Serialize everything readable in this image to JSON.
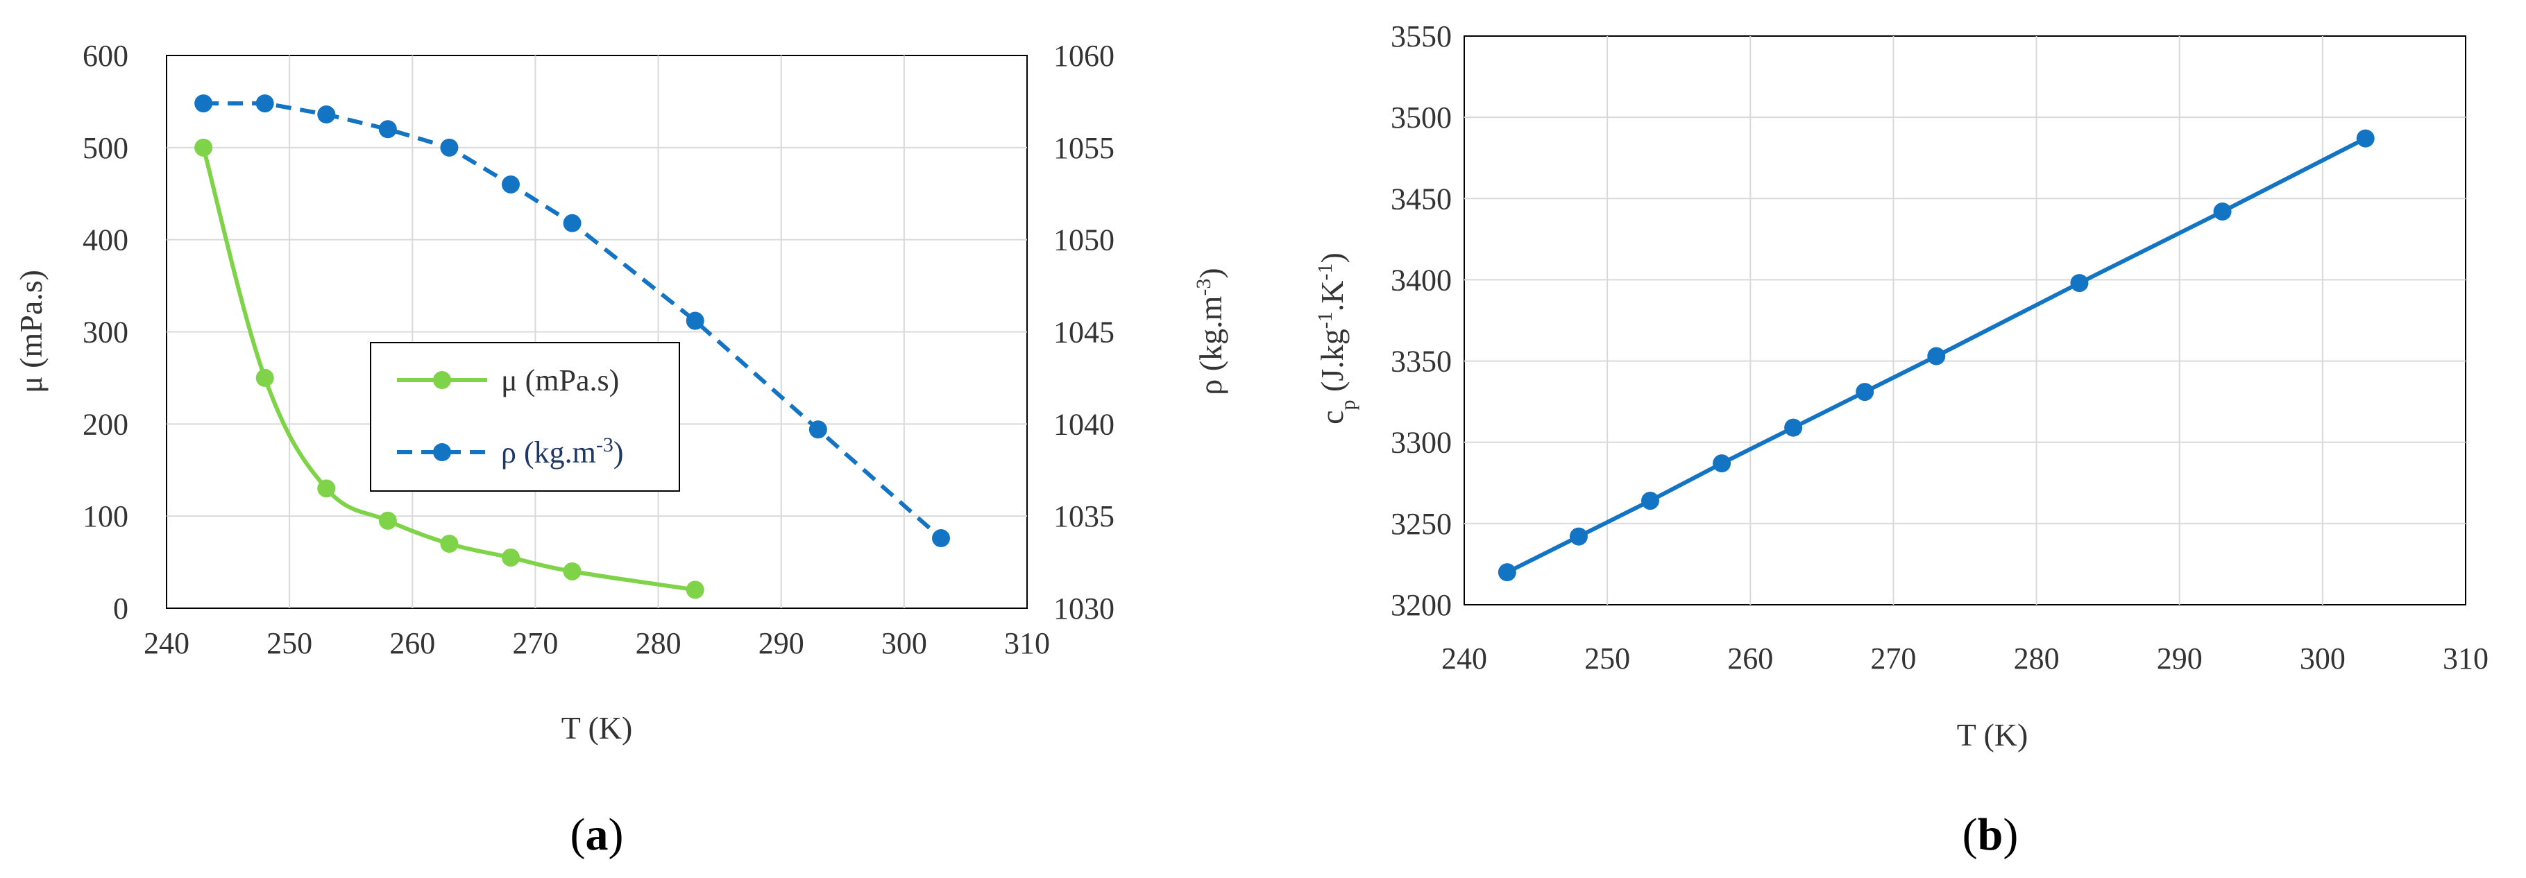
{
  "colors": {
    "mu": "#7ED348",
    "rho": "#1474C4",
    "cp": "#1474C4",
    "grid": "#D9D9D9",
    "frame": "#000000",
    "text": "#333333"
  },
  "chart_data": [
    {
      "type": "line",
      "panel_label": {
        "open": "(",
        "letter": "a",
        "close": ")"
      },
      "xlabel": "T (K)",
      "ylabel_left": "μ (mPa.s)",
      "ylabel_right": {
        "base": "ρ (kg.m",
        "sup": "-3",
        "tail": ")"
      },
      "xlim": [
        240,
        310
      ],
      "xticks": [
        240,
        250,
        260,
        270,
        280,
        290,
        300,
        310
      ],
      "ylim_left": [
        0,
        600
      ],
      "yticks_left": [
        0,
        100,
        200,
        300,
        400,
        500,
        600
      ],
      "ylim_right": [
        1030,
        1060
      ],
      "yticks_right": [
        1030,
        1035,
        1040,
        1045,
        1050,
        1055,
        1060
      ],
      "grid": true,
      "legend_position": "center",
      "series": [
        {
          "name": "μ (mPa.s)",
          "axis": "left",
          "line_style": "solid-smooth",
          "color_key": "mu",
          "x": [
            243,
            248,
            253,
            258,
            263,
            268,
            273,
            283
          ],
          "y": [
            500,
            250,
            130,
            95,
            70,
            55,
            40,
            20
          ]
        },
        {
          "name": "ρ (kg.m-3)",
          "name_parts": {
            "base": "ρ (kg.m",
            "sup": "-3",
            "tail": ")"
          },
          "axis": "right",
          "line_style": "dashed",
          "color_key": "rho",
          "x": [
            243,
            248,
            253,
            258,
            263,
            268,
            273,
            283,
            293,
            303
          ],
          "y": [
            1057.4,
            1057.4,
            1056.8,
            1056.0,
            1055.0,
            1053.0,
            1050.9,
            1045.6,
            1039.7,
            1033.8
          ]
        }
      ]
    },
    {
      "type": "line",
      "panel_label": {
        "open": "(",
        "letter": "b",
        "close": ")"
      },
      "xlabel": "T (K)",
      "ylabel": {
        "c": "c",
        "sub": "p",
        "mid": " (J.kg",
        "sup1": "-1",
        "mid2": ".K",
        "sup2": "-1",
        "tail": ")"
      },
      "xlim": [
        240,
        310
      ],
      "xticks": [
        240,
        250,
        260,
        270,
        280,
        290,
        300,
        310
      ],
      "ylim": [
        3200,
        3550
      ],
      "yticks": [
        3200,
        3250,
        3300,
        3350,
        3400,
        3450,
        3500,
        3550
      ],
      "grid": true,
      "series": [
        {
          "axis": "left",
          "line_style": "solid",
          "color_key": "cp",
          "x": [
            243,
            248,
            253,
            258,
            263,
            268,
            273,
            283,
            293,
            303
          ],
          "y": [
            3220,
            3242,
            3264,
            3287,
            3309,
            3331,
            3353,
            3398,
            3442,
            3487
          ]
        }
      ]
    }
  ]
}
